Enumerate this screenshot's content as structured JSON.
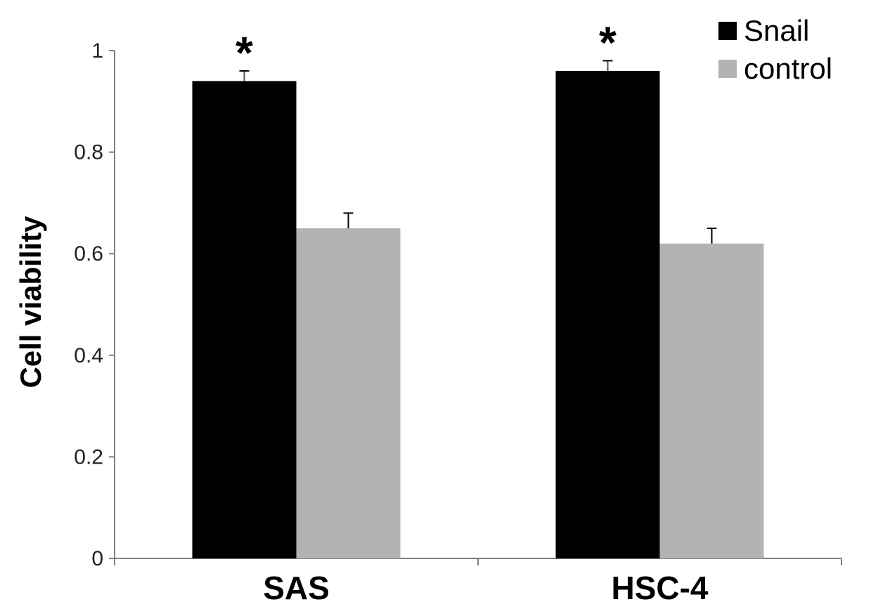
{
  "chart_data": {
    "type": "bar",
    "title": "",
    "xlabel": "",
    "ylabel": "Cell viability",
    "ylim": [
      0,
      1
    ],
    "yticks": [
      0,
      0.2,
      0.4,
      0.6,
      0.8,
      1
    ],
    "ytick_labels": [
      "0",
      "0.2",
      "0.4",
      "0.6",
      "0.8",
      "1"
    ],
    "categories": [
      "SAS",
      "HSC-4"
    ],
    "series": [
      {
        "name": "Snail",
        "values": [
          0.94,
          0.96
        ],
        "errors": [
          0.02,
          0.02
        ],
        "color": "#000000"
      },
      {
        "name": "control",
        "values": [
          0.65,
          0.62
        ],
        "errors": [
          0.03,
          0.03
        ],
        "color": "#b3b3b3"
      }
    ],
    "annotations": [
      {
        "text": "*",
        "category": "SAS",
        "series": "Snail"
      },
      {
        "text": "*",
        "category": "HSC-4",
        "series": "Snail"
      }
    ],
    "grid": false,
    "legend_position": "top-right"
  }
}
